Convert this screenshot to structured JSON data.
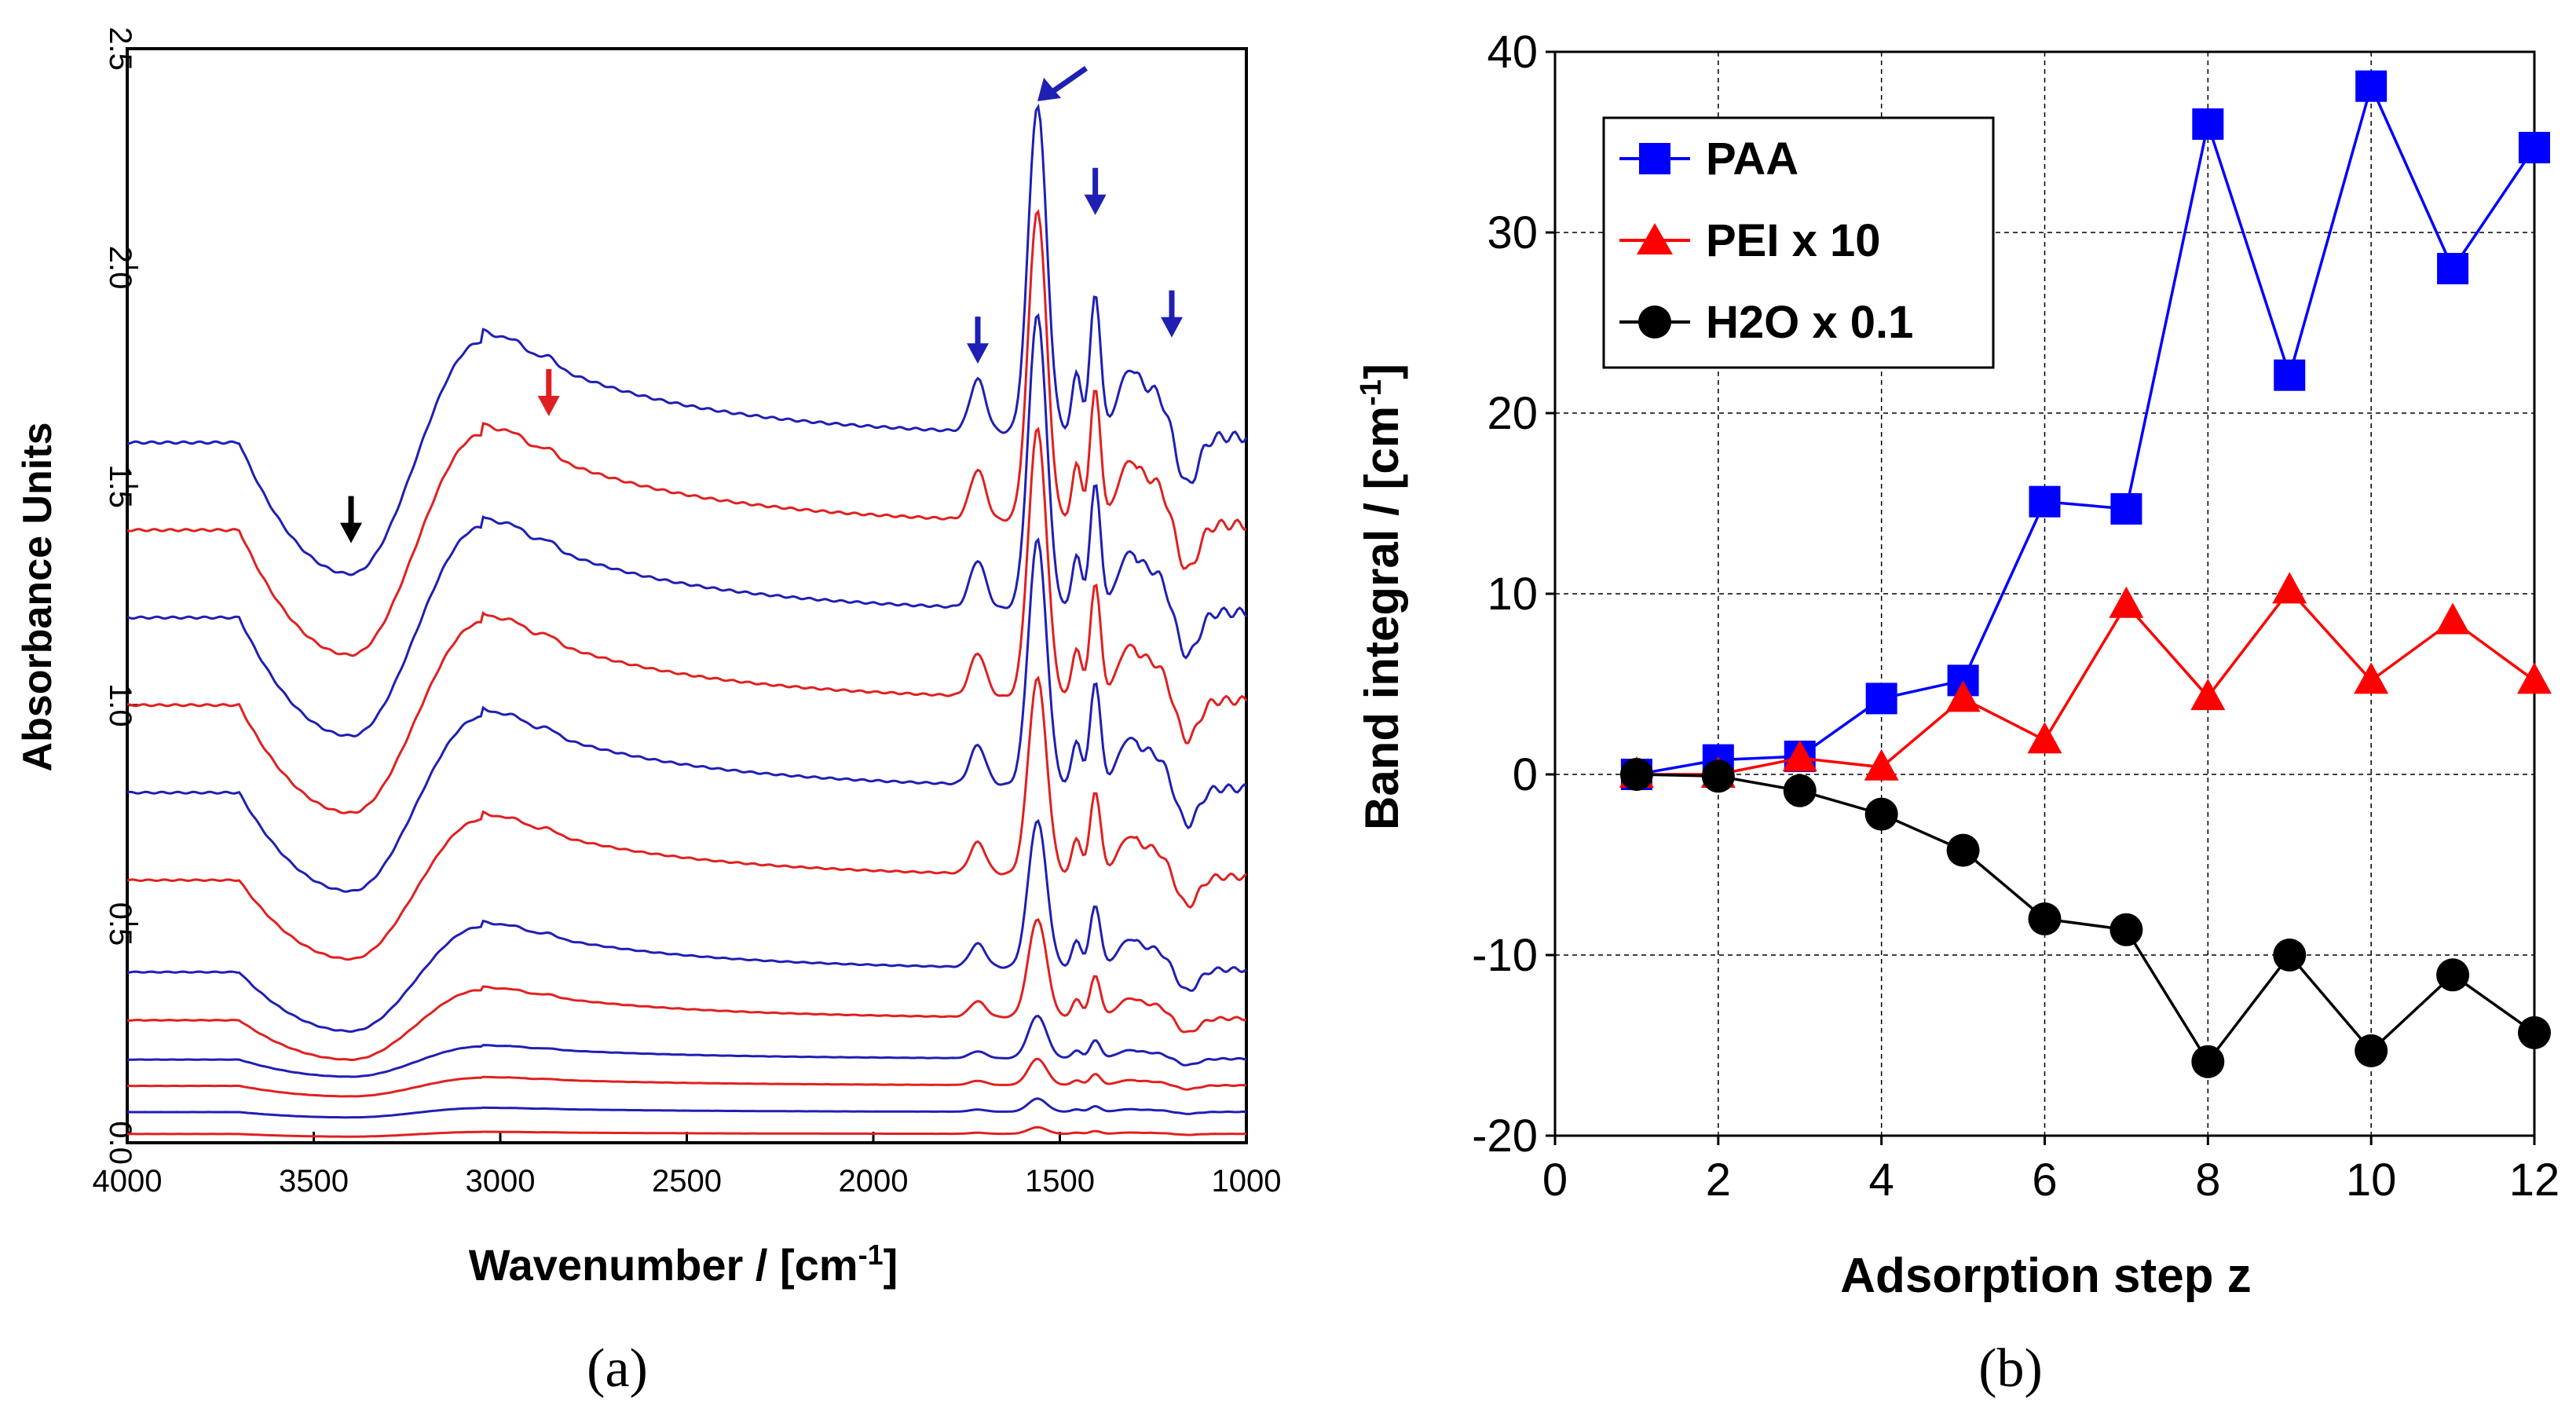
{
  "chart_data": [
    {
      "panel": "(a)",
      "type": "line",
      "title": "",
      "xlabel": "Wavenumber / [cm",
      "xlabel_sup": "-1",
      "xlabel_end": "]",
      "ylabel": "Absorbance Units",
      "xlim": [
        4000,
        1000
      ],
      "ylim": [
        0.0,
        2.5
      ],
      "xticks": [
        "4000",
        "3500",
        "3000",
        "2500",
        "2000",
        "1500",
        "1000"
      ],
      "yticks": [
        "0.0",
        "0.5",
        "1.0",
        "1.5",
        "2.0",
        "2.5"
      ],
      "colors": {
        "blue": "#1f1fb4",
        "red": "#e02020",
        "black": "#000000"
      },
      "series": [
        {
          "name": "spectrum-1",
          "color": "red",
          "baseline": 0.02,
          "scale": 0.02
        },
        {
          "name": "spectrum-2",
          "color": "blue",
          "baseline": 0.07,
          "scale": 0.04
        },
        {
          "name": "spectrum-3",
          "color": "red",
          "baseline": 0.13,
          "scale": 0.08
        },
        {
          "name": "spectrum-4",
          "color": "blue",
          "baseline": 0.19,
          "scale": 0.13
        },
        {
          "name": "spectrum-5",
          "color": "red",
          "baseline": 0.28,
          "scale": 0.3
        },
        {
          "name": "spectrum-6",
          "color": "blue",
          "baseline": 0.39,
          "scale": 0.45
        },
        {
          "name": "spectrum-7",
          "color": "red",
          "baseline": 0.6,
          "scale": 0.6
        },
        {
          "name": "spectrum-8",
          "color": "blue",
          "baseline": 0.8,
          "scale": 0.75
        },
        {
          "name": "spectrum-9",
          "color": "red",
          "baseline": 1.0,
          "scale": 0.82
        },
        {
          "name": "spectrum-10",
          "color": "blue",
          "baseline": 1.2,
          "scale": 0.9
        },
        {
          "name": "spectrum-11",
          "color": "red",
          "baseline": 1.4,
          "scale": 0.95
        },
        {
          "name": "spectrum-12",
          "color": "blue",
          "baseline": 1.6,
          "scale": 1.0
        }
      ],
      "annotations": [
        {
          "label": "arrow-3400",
          "x": 3400,
          "y": 1.37,
          "color": "black",
          "dir": "down"
        },
        {
          "label": "arrow-2870",
          "x": 2870,
          "y": 1.66,
          "color": "red",
          "dir": "down"
        },
        {
          "label": "arrow-1720",
          "x": 1720,
          "y": 1.78,
          "color": "blue",
          "dir": "down"
        },
        {
          "label": "arrow-1560",
          "x": 1560,
          "y": 2.38,
          "color": "blue",
          "dir": "downleft"
        },
        {
          "label": "arrow-1405",
          "x": 1405,
          "y": 2.12,
          "color": "blue",
          "dir": "down"
        },
        {
          "label": "arrow-1200",
          "x": 1200,
          "y": 1.84,
          "color": "blue",
          "dir": "down"
        }
      ]
    },
    {
      "panel": "(b)",
      "type": "line",
      "title": "",
      "xlabel": "Adsorption step z",
      "ylabel": "Band integral / [cm",
      "ylabel_sup": "-1",
      "ylabel_end": "]",
      "xlim": [
        0,
        12
      ],
      "ylim": [
        -20,
        40
      ],
      "xticks": [
        "0",
        "2",
        "4",
        "6",
        "8",
        "10",
        "12"
      ],
      "yticks": [
        "-20",
        "-10",
        "0",
        "10",
        "20",
        "30",
        "40"
      ],
      "grid": true,
      "legend_position": "top-left",
      "x": [
        1,
        2,
        3,
        4,
        5,
        6,
        7,
        8,
        9,
        10,
        11,
        12
      ],
      "series": [
        {
          "name": "PAA",
          "color": "#0000ff",
          "marker": "square",
          "values": [
            0.0,
            0.8,
            1.0,
            4.2,
            5.2,
            15.1,
            14.7,
            36.0,
            22.1,
            38.1,
            28.0,
            34.7
          ]
        },
        {
          "name": "PEI x 10",
          "color": "#ff0000",
          "marker": "triangle",
          "values": [
            0.0,
            0.0,
            0.9,
            0.4,
            4.2,
            1.9,
            9.4,
            4.3,
            10.2,
            5.2,
            8.5,
            5.2
          ]
        },
        {
          "name": "H2O x 0.1",
          "color": "#000000",
          "marker": "circle",
          "values": [
            0.0,
            -0.1,
            -0.9,
            -2.2,
            -4.2,
            -8.0,
            -8.6,
            -15.9,
            -10.0,
            -15.3,
            -11.1,
            -14.3
          ]
        }
      ]
    }
  ]
}
